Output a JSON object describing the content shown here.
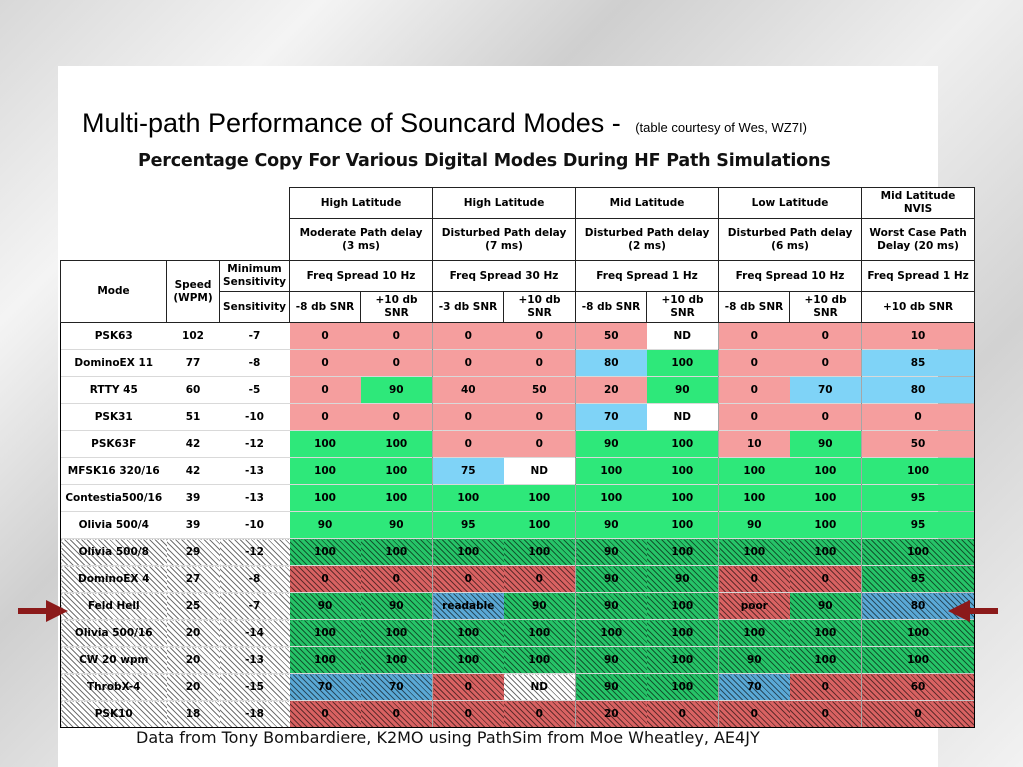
{
  "title": {
    "main": "Multi-path Performance of Souncard Modes -",
    "sub": "(table courtesy of Wes, WZ7I)"
  },
  "heading": "Percentage Copy For Various Digital Modes During HF Path Simulations",
  "footer": "Data from Tony Bombardiere, K2MO using PathSim from Moe Wheatley, AE4JY",
  "table": {
    "path_groups": [
      {
        "region": "High Latitude",
        "delay": "Moderate Path delay\n(3 ms)",
        "spread": "Freq Spread 10 Hz",
        "snr": [
          "-8 db SNR",
          "+10 db\nSNR"
        ]
      },
      {
        "region": "High Latitude",
        "delay": "Disturbed Path delay\n(7 ms)",
        "spread": "Freq Spread 30 Hz",
        "snr": [
          "-3 db SNR",
          "+10 db\nSNR"
        ]
      },
      {
        "region": "Mid Latitude",
        "delay": "Disturbed Path delay\n(2 ms)",
        "spread": "Freq Spread 1 Hz",
        "snr": [
          "-8 db SNR",
          "+10 db\nSNR"
        ]
      },
      {
        "region": "Low Latitude",
        "delay": "Disturbed Path delay\n(6 ms)",
        "spread": "Freq Spread 10 Hz",
        "snr": [
          "-8 db SNR",
          "+10 db\nSNR"
        ]
      },
      {
        "region": "Mid Latitude\nNVIS",
        "delay": "Worst Case Path\nDelay (20 ms)",
        "spread": "Freq Spread 1 Hz",
        "snr": [
          "+10 db SNR"
        ]
      }
    ],
    "col_headers": {
      "mode": "Mode",
      "speed": "Speed\n(WPM)",
      "min_sens": "Minimum\nSensitivity",
      "sensitivity": "Sensitivity"
    },
    "rows": [
      {
        "mode": "PSK63",
        "speed": "102",
        "sens": "-7",
        "hatched": false,
        "cells": [
          [
            "0",
            "r"
          ],
          [
            "0",
            "r"
          ],
          [
            "0",
            "r"
          ],
          [
            "0",
            "r"
          ],
          [
            "50",
            "r"
          ],
          [
            "ND",
            "w"
          ],
          [
            "0",
            "r"
          ],
          [
            "0",
            "r"
          ],
          [
            "10",
            "r"
          ]
        ]
      },
      {
        "mode": "DominoEX 11",
        "speed": "77",
        "sens": "-8",
        "hatched": false,
        "cells": [
          [
            "0",
            "r"
          ],
          [
            "0",
            "r"
          ],
          [
            "0",
            "r"
          ],
          [
            "0",
            "r"
          ],
          [
            "80",
            "b"
          ],
          [
            "100",
            "g"
          ],
          [
            "0",
            "r"
          ],
          [
            "0",
            "r"
          ],
          [
            "85",
            "b"
          ]
        ]
      },
      {
        "mode": "RTTY 45",
        "speed": "60",
        "sens": "-5",
        "hatched": false,
        "cells": [
          [
            "0",
            "r"
          ],
          [
            "90",
            "g"
          ],
          [
            "40",
            "r"
          ],
          [
            "50",
            "r"
          ],
          [
            "20",
            "r"
          ],
          [
            "90",
            "g"
          ],
          [
            "0",
            "r"
          ],
          [
            "70",
            "b"
          ],
          [
            "80",
            "b"
          ]
        ]
      },
      {
        "mode": "PSK31",
        "speed": "51",
        "sens": "-10",
        "hatched": false,
        "cells": [
          [
            "0",
            "r"
          ],
          [
            "0",
            "r"
          ],
          [
            "0",
            "r"
          ],
          [
            "0",
            "r"
          ],
          [
            "70",
            "b"
          ],
          [
            "ND",
            "w"
          ],
          [
            "0",
            "r"
          ],
          [
            "0",
            "r"
          ],
          [
            "0",
            "r"
          ]
        ]
      },
      {
        "mode": "PSK63F",
        "speed": "42",
        "sens": "-12",
        "hatched": false,
        "cells": [
          [
            "100",
            "g"
          ],
          [
            "100",
            "g"
          ],
          [
            "0",
            "r"
          ],
          [
            "0",
            "r"
          ],
          [
            "90",
            "g"
          ],
          [
            "100",
            "g"
          ],
          [
            "10",
            "r"
          ],
          [
            "90",
            "g"
          ],
          [
            "50",
            "r"
          ]
        ]
      },
      {
        "mode": "MFSK16 320/16",
        "speed": "42",
        "sens": "-13",
        "hatched": false,
        "cells": [
          [
            "100",
            "g"
          ],
          [
            "100",
            "g"
          ],
          [
            "75",
            "b"
          ],
          [
            "ND",
            "w"
          ],
          [
            "100",
            "g"
          ],
          [
            "100",
            "g"
          ],
          [
            "100",
            "g"
          ],
          [
            "100",
            "g"
          ],
          [
            "100",
            "g"
          ]
        ]
      },
      {
        "mode": "Contestia500/16",
        "speed": "39",
        "sens": "-13",
        "hatched": false,
        "cells": [
          [
            "100",
            "g"
          ],
          [
            "100",
            "g"
          ],
          [
            "100",
            "g"
          ],
          [
            "100",
            "g"
          ],
          [
            "100",
            "g"
          ],
          [
            "100",
            "g"
          ],
          [
            "100",
            "g"
          ],
          [
            "100",
            "g"
          ],
          [
            "95",
            "g"
          ]
        ]
      },
      {
        "mode": "Olivia 500/4",
        "speed": "39",
        "sens": "-10",
        "hatched": false,
        "cells": [
          [
            "90",
            "g"
          ],
          [
            "90",
            "g"
          ],
          [
            "95",
            "g"
          ],
          [
            "100",
            "g"
          ],
          [
            "90",
            "g"
          ],
          [
            "100",
            "g"
          ],
          [
            "90",
            "g"
          ],
          [
            "100",
            "g"
          ],
          [
            "95",
            "g"
          ]
        ]
      },
      {
        "mode": "Olivia 500/8",
        "speed": "29",
        "sens": "-12",
        "hatched": true,
        "cells": [
          [
            "100",
            "g"
          ],
          [
            "100",
            "g"
          ],
          [
            "100",
            "g"
          ],
          [
            "100",
            "g"
          ],
          [
            "90",
            "g"
          ],
          [
            "100",
            "g"
          ],
          [
            "100",
            "g"
          ],
          [
            "100",
            "g"
          ],
          [
            "100",
            "g"
          ]
        ]
      },
      {
        "mode": "DominoEX 4",
        "speed": "27",
        "sens": "-8",
        "hatched": true,
        "cells": [
          [
            "0",
            "r"
          ],
          [
            "0",
            "r"
          ],
          [
            "0",
            "r"
          ],
          [
            "0",
            "r"
          ],
          [
            "90",
            "g"
          ],
          [
            "90",
            "g"
          ],
          [
            "0",
            "r"
          ],
          [
            "0",
            "r"
          ],
          [
            "95",
            "g"
          ]
        ]
      },
      {
        "mode": "Feld Hell",
        "speed": "25",
        "sens": "-7",
        "hatched": true,
        "cells": [
          [
            "90",
            "g"
          ],
          [
            "90",
            "g"
          ],
          [
            "readable",
            "b"
          ],
          [
            "90",
            "g"
          ],
          [
            "90",
            "g"
          ],
          [
            "100",
            "g"
          ],
          [
            "poor",
            "r"
          ],
          [
            "90",
            "g"
          ],
          [
            "80",
            "b"
          ]
        ]
      },
      {
        "mode": "Olivia 500/16",
        "speed": "20",
        "sens": "-14",
        "hatched": true,
        "cells": [
          [
            "100",
            "g"
          ],
          [
            "100",
            "g"
          ],
          [
            "100",
            "g"
          ],
          [
            "100",
            "g"
          ],
          [
            "100",
            "g"
          ],
          [
            "100",
            "g"
          ],
          [
            "100",
            "g"
          ],
          [
            "100",
            "g"
          ],
          [
            "100",
            "g"
          ]
        ]
      },
      {
        "mode": "CW 20 wpm",
        "speed": "20",
        "sens": "-13",
        "hatched": true,
        "cells": [
          [
            "100",
            "g"
          ],
          [
            "100",
            "g"
          ],
          [
            "100",
            "g"
          ],
          [
            "100",
            "g"
          ],
          [
            "90",
            "g"
          ],
          [
            "100",
            "g"
          ],
          [
            "90",
            "g"
          ],
          [
            "100",
            "g"
          ],
          [
            "100",
            "g"
          ]
        ]
      },
      {
        "mode": "ThrobX-4",
        "speed": "20",
        "sens": "-15",
        "hatched": true,
        "cells": [
          [
            "70",
            "b"
          ],
          [
            "70",
            "b"
          ],
          [
            "0",
            "r"
          ],
          [
            "ND",
            "w"
          ],
          [
            "90",
            "g"
          ],
          [
            "100",
            "g"
          ],
          [
            "70",
            "b"
          ],
          [
            "0",
            "r"
          ],
          [
            "60",
            "r"
          ]
        ]
      },
      {
        "mode": "PSK10",
        "speed": "18",
        "sens": "-18",
        "hatched": true,
        "cells": [
          [
            "0",
            "r"
          ],
          [
            "0",
            "r"
          ],
          [
            "0",
            "r"
          ],
          [
            "0",
            "r"
          ],
          [
            "20",
            "r"
          ],
          [
            "0",
            "r"
          ],
          [
            "0",
            "r"
          ],
          [
            "0",
            "r"
          ],
          [
            "0",
            "r"
          ]
        ]
      }
    ]
  },
  "colors": {
    "red": "#f59e9e",
    "green": "#2ee87a",
    "blue": "#7fd3f7",
    "arrow": "#8b1a1a"
  },
  "arrows": {
    "target_row": "Feld Hell",
    "left_icon": "arrow-right-icon",
    "right_icon": "arrow-left-icon"
  }
}
